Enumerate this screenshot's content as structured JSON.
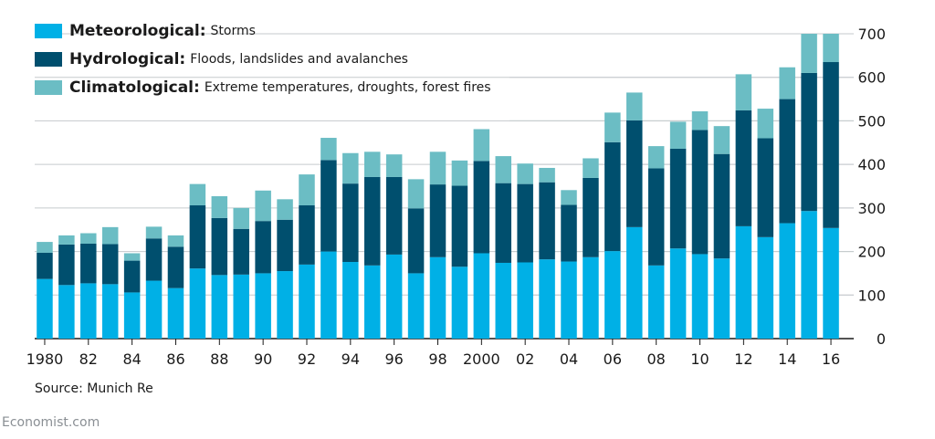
{
  "chart_data": {
    "type": "bar",
    "stacked": true,
    "categories": [
      "1980",
      "1981",
      "1982",
      "1983",
      "1984",
      "1985",
      "1986",
      "1987",
      "1988",
      "1989",
      "1990",
      "1991",
      "1992",
      "1993",
      "1994",
      "1995",
      "1996",
      "1997",
      "1998",
      "1999",
      "2000",
      "2001",
      "2002",
      "2003",
      "2004",
      "2005",
      "2006",
      "2007",
      "2008",
      "2009",
      "2010",
      "2011",
      "2012",
      "2013",
      "2014",
      "2015",
      "2016"
    ],
    "x_tick_labels": [
      {
        "index": 0,
        "label": "1980"
      },
      {
        "index": 2,
        "label": "82"
      },
      {
        "index": 4,
        "label": "84"
      },
      {
        "index": 6,
        "label": "86"
      },
      {
        "index": 8,
        "label": "88"
      },
      {
        "index": 10,
        "label": "90"
      },
      {
        "index": 12,
        "label": "92"
      },
      {
        "index": 14,
        "label": "94"
      },
      {
        "index": 16,
        "label": "96"
      },
      {
        "index": 18,
        "label": "98"
      },
      {
        "index": 20,
        "label": "2000"
      },
      {
        "index": 22,
        "label": "02"
      },
      {
        "index": 24,
        "label": "04"
      },
      {
        "index": 26,
        "label": "06"
      },
      {
        "index": 28,
        "label": "08"
      },
      {
        "index": 30,
        "label": "10"
      },
      {
        "index": 32,
        "label": "12"
      },
      {
        "index": 34,
        "label": "14"
      },
      {
        "index": 36,
        "label": "16"
      }
    ],
    "series": [
      {
        "name": "Meteorological:",
        "description": "Storms",
        "color": "#00b0e6",
        "values": [
          137,
          123,
          127,
          125,
          106,
          133,
          116,
          161,
          146,
          147,
          150,
          155,
          170,
          200,
          176,
          168,
          193,
          150,
          187,
          165,
          196,
          174,
          175,
          182,
          177,
          187,
          201,
          256,
          168,
          207,
          194,
          184,
          258,
          233,
          265,
          293,
          254
        ]
      },
      {
        "name": "Hydrological:",
        "description": "Floods, landslides and avalanches",
        "color": "#004f6e",
        "values": [
          60,
          93,
          91,
          92,
          73,
          97,
          95,
          145,
          131,
          105,
          120,
          118,
          136,
          210,
          180,
          203,
          178,
          149,
          167,
          186,
          212,
          183,
          180,
          177,
          130,
          182,
          250,
          245,
          223,
          229,
          285,
          240,
          266,
          227,
          285,
          317,
          381
        ]
      },
      {
        "name": "Climatological:",
        "description": "Extreme temperatures, droughts, forest fires",
        "color": "#6bbdc4",
        "values": [
          25,
          21,
          24,
          39,
          17,
          27,
          26,
          49,
          50,
          48,
          70,
          47,
          71,
          51,
          70,
          58,
          52,
          67,
          75,
          58,
          73,
          62,
          47,
          33,
          34,
          45,
          68,
          64,
          51,
          62,
          43,
          64,
          83,
          68,
          73,
          93,
          68
        ]
      }
    ],
    "y_axis": {
      "min": 0,
      "max": 700,
      "ticks": [
        0,
        100,
        200,
        300,
        400,
        500,
        600,
        700
      ],
      "position": "right",
      "gridlines": true
    },
    "source": "Source: Munich Re",
    "footer": "Economist.com"
  }
}
